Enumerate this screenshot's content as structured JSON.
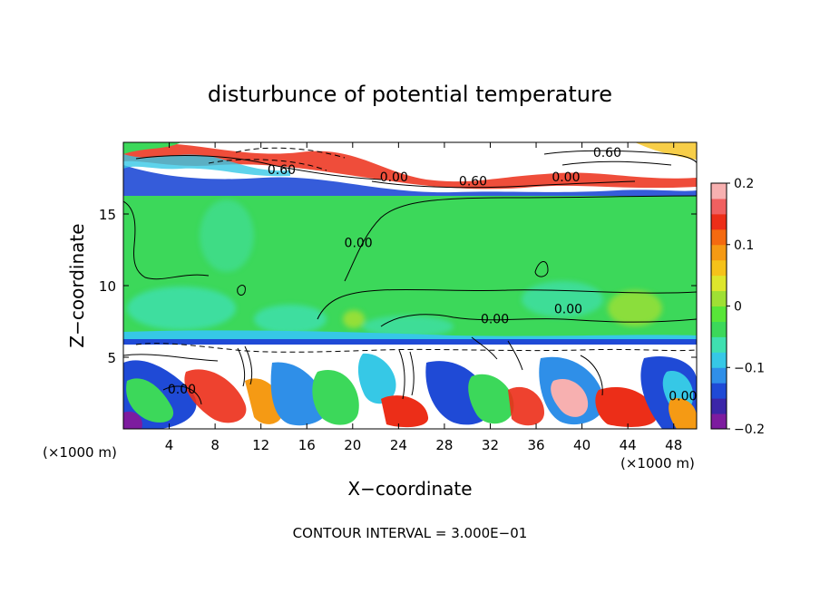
{
  "chart_data": {
    "type": "heatmap",
    "title": "disturbunce of potential temperature",
    "xlabel": "X−coordinate",
    "ylabel": "Z−coordinate",
    "x_unit_left": "(×1000 m)",
    "x_unit_right": "(×1000 m)",
    "xlim": [
      0,
      50
    ],
    "ylim": [
      0,
      20
    ],
    "x_ticks": [
      4,
      8,
      12,
      16,
      20,
      24,
      28,
      32,
      36,
      40,
      44,
      48
    ],
    "x_tick_labels": [
      "4",
      "8",
      "12",
      "16",
      "20",
      "24",
      "28",
      "32",
      "36",
      "40",
      "44",
      "48"
    ],
    "y_ticks": [
      5,
      10,
      15
    ],
    "y_tick_labels": [
      "5",
      "10",
      "15"
    ],
    "colorbar": {
      "range": [
        -0.2,
        0.2
      ],
      "ticks": [
        0.2,
        0.1,
        0,
        -0.1,
        -0.2
      ],
      "tick_labels": [
        "0.2",
        "0.1",
        "0",
        "−0.1",
        "−0.2"
      ],
      "colors": [
        "#7d1c9f",
        "#3b26a8",
        "#1f4ad6",
        "#2f8fe8",
        "#36c8e6",
        "#3fe0b0",
        "#3cd85a",
        "#58e638",
        "#9fe034",
        "#dde62c",
        "#f5c21a",
        "#f59a14",
        "#f46a10",
        "#ec2e18",
        "#f06060",
        "#f7b0b0"
      ]
    },
    "contour_labels": [
      {
        "text": "0.60",
        "x": 42.2,
        "z": 19.3
      },
      {
        "text": "0.60",
        "x": 13.8,
        "z": 18.1
      },
      {
        "text": "0.00",
        "x": 23.6,
        "z": 17.6
      },
      {
        "text": "0.60",
        "x": 30.5,
        "z": 17.3
      },
      {
        "text": "0.00",
        "x": 38.6,
        "z": 17.6
      },
      {
        "text": "0.00",
        "x": 20.5,
        "z": 13.0
      },
      {
        "text": "0.00",
        "x": 38.8,
        "z": 8.4
      },
      {
        "text": "0.00",
        "x": 32.4,
        "z": 7.7
      },
      {
        "text": "0.00",
        "x": 5.1,
        "z": 2.8
      },
      {
        "text": "0.00",
        "x": 48.8,
        "z": 2.3
      }
    ],
    "footer": "CONTOUR INTERVAL = 3.000E−01",
    "grid": false
  }
}
